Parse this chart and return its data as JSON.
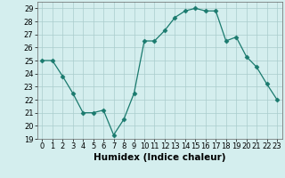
{
  "x": [
    0,
    1,
    2,
    3,
    4,
    5,
    6,
    7,
    8,
    9,
    10,
    11,
    12,
    13,
    14,
    15,
    16,
    17,
    18,
    19,
    20,
    21,
    22,
    23
  ],
  "y": [
    25.0,
    25.0,
    23.8,
    22.5,
    21.0,
    21.0,
    21.2,
    19.3,
    20.5,
    22.5,
    26.5,
    26.5,
    27.3,
    28.3,
    28.8,
    29.0,
    28.8,
    28.8,
    26.5,
    26.8,
    25.3,
    24.5,
    23.2,
    22.0
  ],
  "line_color": "#1a7a6e",
  "marker": "D",
  "marker_size": 2.5,
  "bg_color": "#d4eeee",
  "grid_color": "#aacccc",
  "xlabel": "Humidex (Indice chaleur)",
  "ylim": [
    19,
    29.5
  ],
  "xlim": [
    -0.5,
    23.5
  ],
  "yticks": [
    19,
    20,
    21,
    22,
    23,
    24,
    25,
    26,
    27,
    28,
    29
  ],
  "xticks": [
    0,
    1,
    2,
    3,
    4,
    5,
    6,
    7,
    8,
    9,
    10,
    11,
    12,
    13,
    14,
    15,
    16,
    17,
    18,
    19,
    20,
    21,
    22,
    23
  ],
  "label_fontsize": 7.5,
  "tick_fontsize": 6.0
}
